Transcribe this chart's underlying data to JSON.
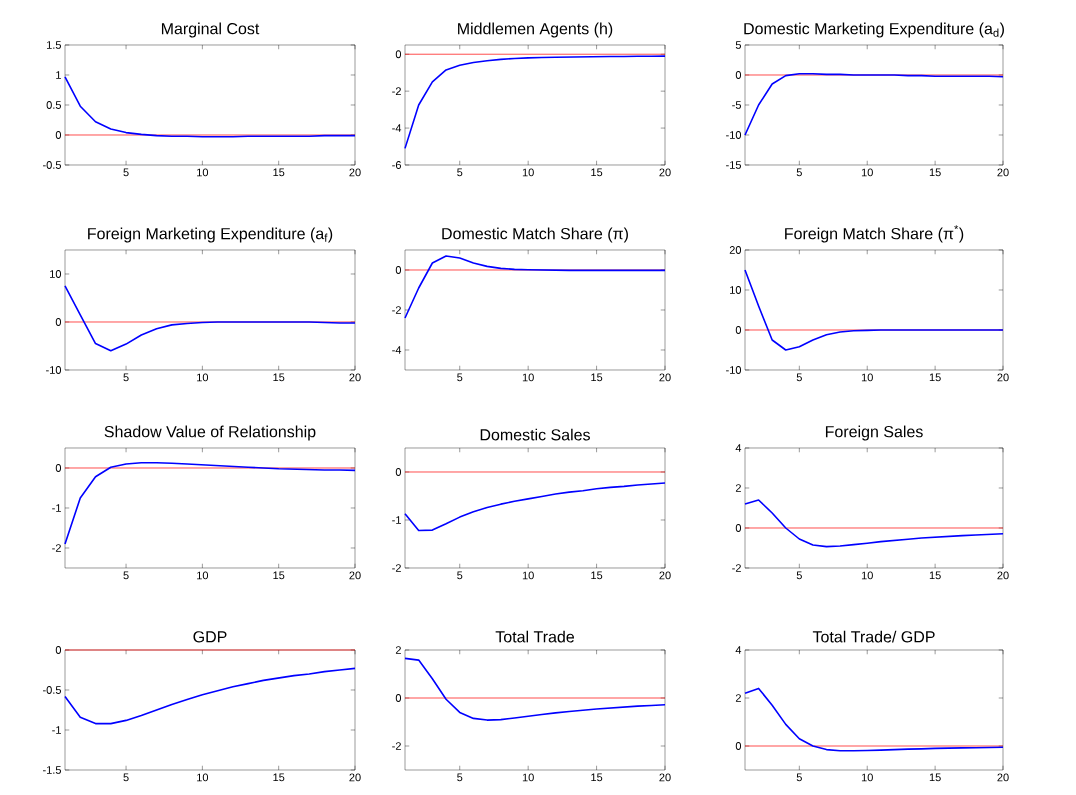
{
  "chart_data": [
    {
      "type": "line",
      "title": "Marginal Cost",
      "x": [
        1,
        2,
        3,
        4,
        5,
        6,
        7,
        8,
        9,
        10,
        11,
        12,
        13,
        14,
        15,
        16,
        17,
        18,
        19,
        20
      ],
      "xlim": [
        1,
        20
      ],
      "xticks": [
        5,
        10,
        15,
        20
      ],
      "ylim": [
        -0.5,
        1.5
      ],
      "yticks": [
        -0.5,
        0,
        0.5,
        1,
        1.5
      ],
      "ref_lines": [
        {
          "axis": "y",
          "value": 0,
          "color": "#ff0000"
        }
      ],
      "series": [
        {
          "color": "#0000ff",
          "values": [
            0.97,
            0.48,
            0.22,
            0.1,
            0.04,
            0.01,
            -0.01,
            -0.02,
            -0.02,
            -0.03,
            -0.03,
            -0.03,
            -0.02,
            -0.02,
            -0.02,
            -0.02,
            -0.02,
            -0.01,
            -0.01,
            -0.01
          ]
        }
      ]
    },
    {
      "type": "line",
      "title": "Middlemen Agents (h)",
      "x": [
        1,
        2,
        3,
        4,
        5,
        6,
        7,
        8,
        9,
        10,
        11,
        12,
        13,
        14,
        15,
        16,
        17,
        18,
        19,
        20
      ],
      "xlim": [
        1,
        20
      ],
      "xticks": [
        5,
        10,
        15,
        20
      ],
      "ylim": [
        -6,
        0.5
      ],
      "yticks": [
        -6,
        -4,
        -2,
        0
      ],
      "ref_lines": [
        {
          "axis": "y",
          "value": 0,
          "color": "#ff0000"
        }
      ],
      "series": [
        {
          "color": "#0000ff",
          "values": [
            -5.1,
            -2.75,
            -1.5,
            -0.85,
            -0.6,
            -0.45,
            -0.35,
            -0.28,
            -0.23,
            -0.2,
            -0.18,
            -0.16,
            -0.15,
            -0.14,
            -0.13,
            -0.12,
            -0.12,
            -0.11,
            -0.11,
            -0.1
          ]
        }
      ]
    },
    {
      "type": "line",
      "title": "Domestic Marketing Expenditure (a$_{d}$)",
      "x": [
        1,
        2,
        3,
        4,
        5,
        6,
        7,
        8,
        9,
        10,
        11,
        12,
        13,
        14,
        15,
        16,
        17,
        18,
        19,
        20
      ],
      "xlim": [
        1,
        20
      ],
      "xticks": [
        5,
        10,
        15,
        20
      ],
      "ylim": [
        -15,
        5
      ],
      "yticks": [
        -15,
        -10,
        -5,
        0,
        5
      ],
      "ref_lines": [
        {
          "axis": "y",
          "value": 0,
          "color": "#ff0000"
        }
      ],
      "series": [
        {
          "color": "#0000ff",
          "values": [
            -10,
            -5,
            -1.5,
            -0.1,
            0.2,
            0.2,
            0.1,
            0.1,
            0,
            0,
            0,
            0,
            -0.1,
            -0.1,
            -0.2,
            -0.2,
            -0.2,
            -0.2,
            -0.2,
            -0.3
          ]
        }
      ]
    },
    {
      "type": "line",
      "title": "Foreign Marketing Expenditure (a$_{f}$)",
      "x": [
        1,
        2,
        3,
        4,
        5,
        6,
        7,
        8,
        9,
        10,
        11,
        12,
        13,
        14,
        15,
        16,
        17,
        18,
        19,
        20
      ],
      "xlim": [
        1,
        20
      ],
      "xticks": [
        5,
        10,
        15,
        20
      ],
      "ylim": [
        -10,
        15
      ],
      "yticks": [
        -10,
        0,
        10
      ],
      "ref_lines": [
        {
          "axis": "y",
          "value": 0,
          "color": "#ff0000"
        }
      ],
      "series": [
        {
          "color": "#0000ff",
          "values": [
            7.5,
            1.5,
            -4.5,
            -6,
            -4.6,
            -2.7,
            -1.4,
            -0.6,
            -0.3,
            -0.1,
            0,
            0,
            0,
            0,
            0,
            0,
            0,
            -0.1,
            -0.2,
            -0.2
          ]
        }
      ]
    },
    {
      "type": "line",
      "title": "Domestic Match Share (π)",
      "x": [
        1,
        2,
        3,
        4,
        5,
        6,
        7,
        8,
        9,
        10,
        11,
        12,
        13,
        14,
        15,
        16,
        17,
        18,
        19,
        20
      ],
      "xlim": [
        1,
        20
      ],
      "xticks": [
        5,
        10,
        15,
        20
      ],
      "ylim": [
        -5,
        1
      ],
      "yticks": [
        -4,
        -2,
        0
      ],
      "ref_lines": [
        {
          "axis": "y",
          "value": 0,
          "color": "#ff0000"
        }
      ],
      "series": [
        {
          "color": "#0000ff",
          "values": [
            -2.4,
            -0.9,
            0.35,
            0.7,
            0.6,
            0.35,
            0.18,
            0.08,
            0.03,
            0.01,
            0,
            -0.01,
            -0.02,
            -0.02,
            -0.02,
            -0.02,
            -0.02,
            -0.02,
            -0.02,
            -0.02
          ]
        }
      ]
    },
    {
      "type": "line",
      "title": "Foreign Match Share (π$^{*}$)",
      "x": [
        1,
        2,
        3,
        4,
        5,
        6,
        7,
        8,
        9,
        10,
        11,
        12,
        13,
        14,
        15,
        16,
        17,
        18,
        19,
        20
      ],
      "xlim": [
        1,
        20
      ],
      "xticks": [
        5,
        10,
        15,
        20
      ],
      "ylim": [
        -10,
        20
      ],
      "yticks": [
        -10,
        0,
        10,
        20
      ],
      "ref_lines": [
        {
          "axis": "y",
          "value": 0,
          "color": "#ff0000"
        }
      ],
      "series": [
        {
          "color": "#0000ff",
          "values": [
            15,
            6,
            -2.5,
            -5,
            -4.2,
            -2.5,
            -1.2,
            -0.5,
            -0.2,
            -0.1,
            0,
            0,
            0,
            0,
            0,
            0,
            0,
            0,
            0,
            0
          ]
        }
      ]
    },
    {
      "type": "line",
      "title": "Shadow Value of Relationship",
      "x": [
        1,
        2,
        3,
        4,
        5,
        6,
        7,
        8,
        9,
        10,
        11,
        12,
        13,
        14,
        15,
        16,
        17,
        18,
        19,
        20
      ],
      "xlim": [
        1,
        20
      ],
      "xticks": [
        5,
        10,
        15,
        20
      ],
      "ylim": [
        -2.5,
        0.5
      ],
      "yticks": [
        -2,
        -1,
        0
      ],
      "ref_lines": [
        {
          "axis": "y",
          "value": 0,
          "color": "#ff0000"
        }
      ],
      "series": [
        {
          "color": "#0000ff",
          "values": [
            -1.9,
            -0.75,
            -0.22,
            0.02,
            0.1,
            0.13,
            0.13,
            0.12,
            0.1,
            0.08,
            0.06,
            0.04,
            0.02,
            0,
            -0.02,
            -0.03,
            -0.04,
            -0.05,
            -0.05,
            -0.06
          ]
        }
      ]
    },
    {
      "type": "line",
      "title": "Domestic Sales",
      "x": [
        1,
        2,
        3,
        4,
        5,
        6,
        7,
        8,
        9,
        10,
        11,
        12,
        13,
        14,
        15,
        16,
        17,
        18,
        19,
        20
      ],
      "xlim": [
        1,
        20
      ],
      "xticks": [
        5,
        10,
        15,
        20
      ],
      "ylim": [
        -2,
        0.5
      ],
      "yticks": [
        -2,
        -1,
        0
      ],
      "ref_lines": [
        {
          "axis": "y",
          "value": 0,
          "color": "#ff0000"
        }
      ],
      "series": [
        {
          "color": "#0000ff",
          "values": [
            -0.87,
            -1.22,
            -1.21,
            -1.08,
            -0.94,
            -0.83,
            -0.74,
            -0.67,
            -0.61,
            -0.56,
            -0.51,
            -0.46,
            -0.42,
            -0.39,
            -0.35,
            -0.32,
            -0.3,
            -0.27,
            -0.25,
            -0.23
          ]
        }
      ]
    },
    {
      "type": "line",
      "title": "Foreign Sales",
      "x": [
        1,
        2,
        3,
        4,
        5,
        6,
        7,
        8,
        9,
        10,
        11,
        12,
        13,
        14,
        15,
        16,
        17,
        18,
        19,
        20
      ],
      "xlim": [
        1,
        20
      ],
      "xticks": [
        5,
        10,
        15,
        20
      ],
      "ylim": [
        -2,
        4
      ],
      "yticks": [
        -2,
        0,
        2,
        4
      ],
      "ref_lines": [
        {
          "axis": "y",
          "value": 0,
          "color": "#ff0000"
        }
      ],
      "series": [
        {
          "color": "#0000ff",
          "values": [
            1.2,
            1.4,
            0.75,
            0,
            -0.55,
            -0.85,
            -0.93,
            -0.9,
            -0.83,
            -0.76,
            -0.68,
            -0.62,
            -0.56,
            -0.5,
            -0.46,
            -0.42,
            -0.38,
            -0.35,
            -0.32,
            -0.29
          ]
        }
      ]
    },
    {
      "type": "line",
      "title": "GDP",
      "x": [
        1,
        2,
        3,
        4,
        5,
        6,
        7,
        8,
        9,
        10,
        11,
        12,
        13,
        14,
        15,
        16,
        17,
        18,
        19,
        20
      ],
      "xlim": [
        1,
        20
      ],
      "xticks": [
        5,
        10,
        15,
        20
      ],
      "ylim": [
        -1.5,
        0
      ],
      "yticks": [
        -1.5,
        -1,
        -0.5,
        0
      ],
      "ref_lines": [
        {
          "axis": "y",
          "value": 0,
          "color": "#ff0000"
        }
      ],
      "series": [
        {
          "color": "#0000ff",
          "values": [
            -0.58,
            -0.84,
            -0.92,
            -0.92,
            -0.88,
            -0.82,
            -0.75,
            -0.68,
            -0.62,
            -0.56,
            -0.51,
            -0.46,
            -0.42,
            -0.38,
            -0.35,
            -0.32,
            -0.3,
            -0.27,
            -0.25,
            -0.23
          ]
        }
      ]
    },
    {
      "type": "line",
      "title": "Total Trade",
      "x": [
        1,
        2,
        3,
        4,
        5,
        6,
        7,
        8,
        9,
        10,
        11,
        12,
        13,
        14,
        15,
        16,
        17,
        18,
        19,
        20
      ],
      "xlim": [
        1,
        20
      ],
      "xticks": [
        5,
        10,
        15,
        20
      ],
      "ylim": [
        -3,
        2
      ],
      "yticks": [
        -2,
        0,
        2
      ],
      "ref_lines": [
        {
          "axis": "y",
          "value": 0,
          "color": "#ff0000"
        }
      ],
      "series": [
        {
          "color": "#0000ff",
          "values": [
            1.65,
            1.58,
            0.8,
            -0.05,
            -0.6,
            -0.85,
            -0.92,
            -0.9,
            -0.83,
            -0.76,
            -0.69,
            -0.62,
            -0.56,
            -0.51,
            -0.46,
            -0.42,
            -0.38,
            -0.34,
            -0.31,
            -0.28
          ]
        }
      ]
    },
    {
      "type": "line",
      "title": "Total Trade/ GDP",
      "x": [
        1,
        2,
        3,
        4,
        5,
        6,
        7,
        8,
        9,
        10,
        11,
        12,
        13,
        14,
        15,
        16,
        17,
        18,
        19,
        20
      ],
      "xlim": [
        1,
        20
      ],
      "xticks": [
        5,
        10,
        15,
        20
      ],
      "ylim": [
        -1,
        4
      ],
      "yticks": [
        0,
        2,
        4
      ],
      "ref_lines": [
        {
          "axis": "y",
          "value": 0,
          "color": "#ff0000"
        }
      ],
      "series": [
        {
          "color": "#0000ff",
          "values": [
            2.2,
            2.4,
            1.7,
            0.9,
            0.3,
            0,
            -0.15,
            -0.2,
            -0.2,
            -0.19,
            -0.17,
            -0.15,
            -0.13,
            -0.12,
            -0.1,
            -0.09,
            -0.08,
            -0.07,
            -0.06,
            -0.05
          ]
        }
      ]
    }
  ]
}
